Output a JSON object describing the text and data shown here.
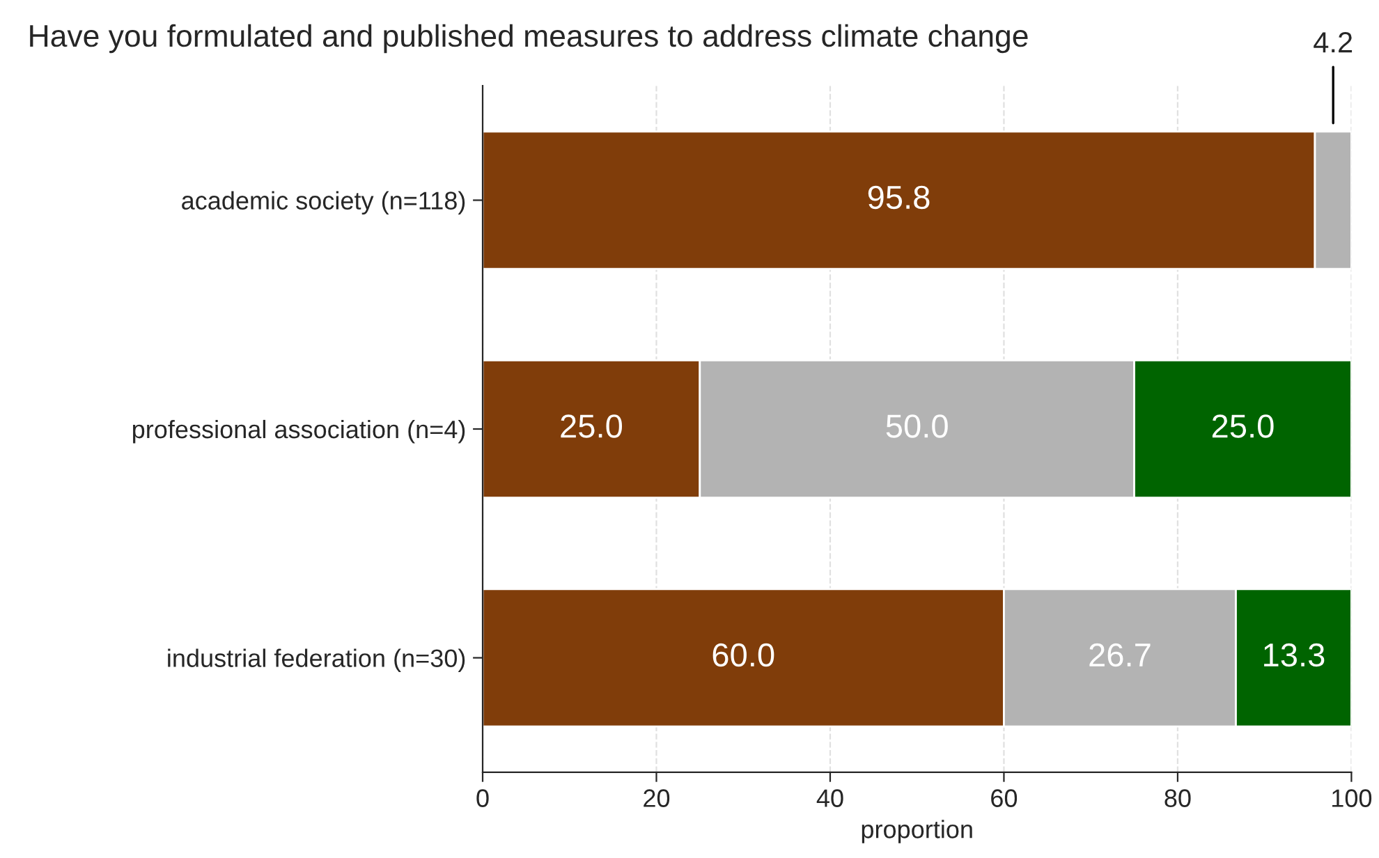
{
  "chart_data": {
    "type": "bar",
    "orientation": "horizontal",
    "stacked": true,
    "title": "Have you formulated and published measures to address climate change",
    "xlabel": "proportion",
    "categories": [
      "academic society (n=118)",
      "professional association (n=4)",
      "industrial federation (n=30)"
    ],
    "series": [
      {
        "color": "#803d0a",
        "values": [
          95.8,
          25.0,
          60.0
        ],
        "value_labels": [
          "95.8",
          "25.0",
          "60.0"
        ]
      },
      {
        "color": "#b3b3b3",
        "values": [
          4.2,
          50.0,
          26.7
        ],
        "value_labels": [
          "4.2",
          "50.0",
          "26.7"
        ]
      },
      {
        "color": "#006400",
        "values": [
          null,
          25.0,
          13.3
        ],
        "value_labels": [
          null,
          "25.0",
          "13.3"
        ]
      }
    ],
    "xlim": [
      0,
      100
    ],
    "xticks": [
      0,
      20,
      40,
      60,
      80,
      100
    ],
    "grid": "x",
    "legend": false
  }
}
